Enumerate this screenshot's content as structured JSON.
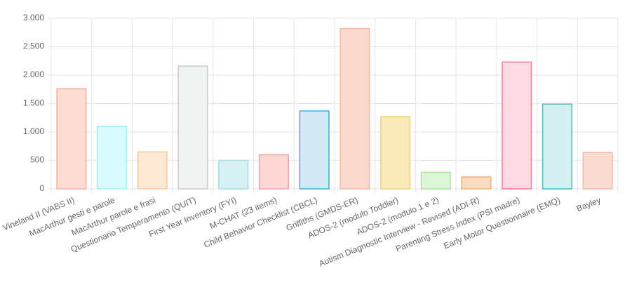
{
  "chart_data": {
    "type": "bar",
    "categories": [
      "Vineland II (VABS II)",
      "MacArthur gesti e parole",
      "MacArthur parole e frasi",
      "Questionario Temperamento (QUIT)",
      "First Year Inventory (FYI)",
      "M-CHAT (23 items)",
      "Child Behavior Checklist (CBCL)",
      "Griffiths (GMDS-ER)",
      "ADOS-2 (modulo Toddler)",
      "ADOS-2 (modulo 1 e 2)",
      "Autism Diagnostic Interview - Revised (ADI-R)",
      "Parenting Stress Index (PSI madre)",
      "Early Motor Questionnaire (EMQ)",
      "Bayley"
    ],
    "values": [
      1760,
      1100,
      650,
      2160,
      500,
      600,
      1370,
      2820,
      1270,
      290,
      210,
      2230,
      1490,
      640
    ],
    "colors": [
      "#f3b0a0",
      "#9ef0f5",
      "#f8c99c",
      "#c9cbcc",
      "#9fdde6",
      "#f5a3a3",
      "#4aa8d8",
      "#f4b8a8",
      "#efd27a",
      "#a7e19a",
      "#f4b07a",
      "#f07a98",
      "#4eb9c4",
      "#f4b6a6"
    ],
    "fill_colors": [
      "#fddcd4",
      "#d9fbfd",
      "#fde8d5",
      "#f1f2f2",
      "#d5f1f4",
      "#fcd5d5",
      "#d3e9f6",
      "#fbd8ce",
      "#faeab9",
      "#def5d7",
      "#fadbc0",
      "#ffdce4",
      "#d6eff1",
      "#fbdcd3"
    ],
    "ylim": [
      0,
      3000
    ],
    "yticks": [
      0,
      500,
      {
        "value": 1000,
        "label": "1.000"
      },
      {
        "value": 1500,
        "label": "1.500"
      },
      {
        "value": 2000,
        "label": "2.000"
      },
      {
        "value": 2500,
        "label": "2.500"
      },
      {
        "value": 3000,
        "label": "3.000"
      }
    ],
    "grid": true
  }
}
